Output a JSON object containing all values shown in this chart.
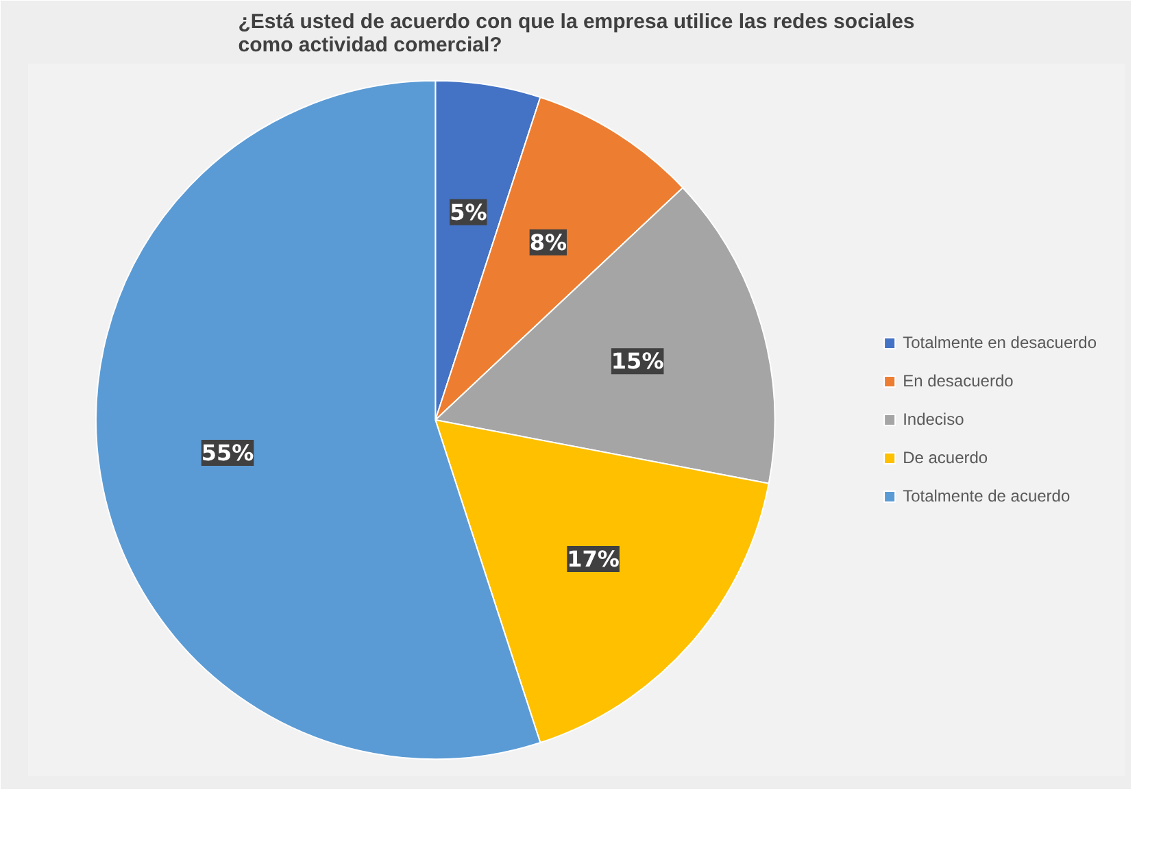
{
  "chart_data": {
    "type": "pie",
    "title": "¿Está usted de acuerdo con que la empresa utilice las redes sociales como actividad comercial?",
    "categories": [
      "Totalmente en desacuerdo",
      "En desacuerdo",
      "Indeciso",
      "De acuerdo",
      "Totalmente de acuerdo"
    ],
    "values": [
      5,
      8,
      15,
      17,
      55
    ],
    "colors": [
      "#4472c4",
      "#ed7d31",
      "#a5a5a5",
      "#ffc000",
      "#5b9bd5"
    ],
    "value_labels": [
      "5%",
      "8%",
      "15%",
      "17%",
      "55%"
    ],
    "legend": "right"
  }
}
